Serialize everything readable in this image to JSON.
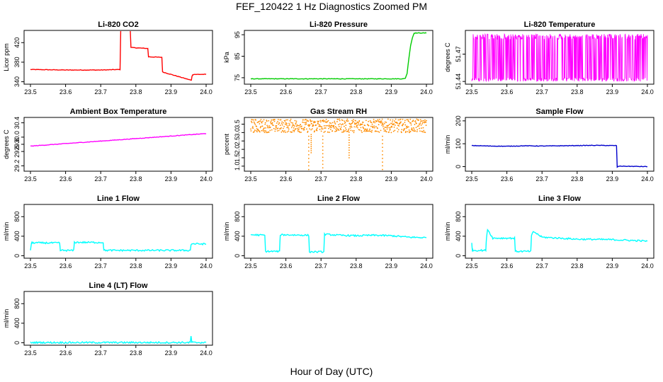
{
  "page": {
    "title": "FEF_120422  1 Hz Diagnostics Zoomed PM",
    "xlabel": "Hour of Day (UTC)"
  },
  "chart_data": [
    {
      "id": "co2",
      "type": "line",
      "title": "Li-820 CO2",
      "ylabel": "Licor ppm",
      "color": "#ff0000",
      "xlim": [
        23.5,
        24.0
      ],
      "ylim": [
        335,
        445
      ],
      "xticks": [
        "23.5",
        "23.6",
        "23.7",
        "23.8",
        "23.9",
        "24.0"
      ],
      "yticks": [
        "340",
        "380",
        "420"
      ],
      "series": [
        {
          "x": [
            23.5,
            23.6,
            23.7,
            23.755,
            23.757,
            23.784,
            23.786,
            23.834,
            23.836,
            23.874,
            23.876,
            23.958,
            23.96,
            23.962,
            23.964,
            24.0
          ],
          "y": [
            365,
            364,
            364,
            365,
            448,
            448,
            410,
            408,
            391,
            390,
            360,
            343,
            352,
            354,
            355,
            355
          ]
        }
      ]
    },
    {
      "id": "pressure",
      "type": "line",
      "title": "Li-820 Pressure",
      "ylabel": "kPa",
      "color": "#00cc00",
      "xlim": [
        23.5,
        24.0
      ],
      "ylim": [
        72,
        97
      ],
      "xticks": [
        "23.5",
        "23.6",
        "23.7",
        "23.8",
        "23.9",
        "24.0"
      ],
      "yticks": [
        "75",
        "85",
        "95"
      ],
      "series": [
        {
          "x": [
            23.5,
            23.7,
            23.9,
            23.935,
            23.94,
            23.945,
            23.95,
            23.955,
            23.96,
            23.965,
            24.0
          ],
          "y": [
            74.5,
            74.5,
            74.5,
            74.5,
            74.8,
            77,
            84,
            90,
            93.5,
            95.8,
            95.8
          ]
        }
      ]
    },
    {
      "id": "licor-temp",
      "type": "line",
      "title": "Li-820 Temperature",
      "ylabel": "degrees C",
      "color": "#ff00ff",
      "xlim": [
        23.5,
        24.0
      ],
      "ylim": [
        51.437,
        51.496
      ],
      "xticks": [
        "23.5",
        "23.6",
        "23.7",
        "23.8",
        "23.9",
        "24.0"
      ],
      "yticks": [
        "51.44",
        "51.47"
      ],
      "series": [
        {
          "noise": "band",
          "low": 51.44,
          "high": 51.492
        }
      ]
    },
    {
      "id": "box-temp",
      "type": "line",
      "title": "Ambient Box Temperature",
      "ylabel": "degrees C",
      "color": "#ff00ff",
      "xlim": [
        23.5,
        24.0
      ],
      "ylim": [
        29.05,
        30.55
      ],
      "xticks": [
        "23.5",
        "23.6",
        "23.7",
        "23.8",
        "23.9",
        "24.0"
      ],
      "yticks": [
        "29.2",
        "29.6",
        "29.8",
        "30.0",
        "30.4"
      ],
      "series": [
        {
          "noise": "ramp",
          "x": [
            23.5,
            24.0
          ],
          "y": [
            29.75,
            30.1
          ],
          "spread": 0.2
        }
      ]
    },
    {
      "id": "rh",
      "type": "scatter",
      "title": "Gas Stream RH",
      "ylabel": "percent",
      "color": "#ff8c00",
      "xlim": [
        23.5,
        24.0
      ],
      "ylim": [
        0.7,
        3.9
      ],
      "xticks": [
        "23.5",
        "23.6",
        "23.7",
        "23.8",
        "23.9",
        "24.0"
      ],
      "yticks": [
        "1.0",
        "1.5",
        "2.0",
        "2.5",
        "3.0",
        "3.5"
      ],
      "series": [
        {
          "noise": "dots",
          "low": 3.0,
          "high": 3.8,
          "dips": [
            [
              23.665,
              0.8
            ],
            [
              23.672,
              1.8
            ],
            [
              23.705,
              0.9
            ],
            [
              23.78,
              1.5
            ],
            [
              23.875,
              0.8
            ]
          ]
        }
      ]
    },
    {
      "id": "sample-flow",
      "type": "line",
      "title": "Sample Flow",
      "ylabel": "ml/min",
      "color": "#0000cc",
      "xlim": [
        23.5,
        24.0
      ],
      "ylim": [
        -20,
        215
      ],
      "xticks": [
        "23.5",
        "23.6",
        "23.7",
        "23.8",
        "23.9",
        "24.0"
      ],
      "yticks": [
        "0",
        "100",
        "200"
      ],
      "series": [
        {
          "x": [
            23.5,
            23.55,
            23.6,
            23.65,
            23.7,
            23.75,
            23.8,
            23.85,
            23.9,
            23.912,
            23.914,
            23.92,
            24.0
          ],
          "y": [
            92,
            90,
            89,
            91,
            90,
            91,
            92,
            93,
            92,
            92,
            -2,
            2,
            0
          ]
        }
      ]
    },
    {
      "id": "line1-flow",
      "type": "line",
      "title": "Line 1 Flow",
      "ylabel": "ml/min",
      "color": "#00ffff",
      "xlim": [
        23.5,
        24.0
      ],
      "ylim": [
        -50,
        1050
      ],
      "xticks": [
        "23.5",
        "23.6",
        "23.7",
        "23.8",
        "23.9",
        "24.0"
      ],
      "yticks": [
        "0",
        "400",
        "800"
      ],
      "series": [
        {
          "x": [
            23.5,
            23.503,
            23.505,
            23.583,
            23.585,
            23.623,
            23.625,
            23.707,
            23.709,
            23.955,
            23.957,
            23.96,
            24.0
          ],
          "y": [
            120,
            260,
            265,
            262,
            110,
            108,
            275,
            272,
            110,
            110,
            230,
            245,
            240
          ]
        }
      ]
    },
    {
      "id": "line2-flow",
      "type": "line",
      "title": "Line 2 Flow",
      "ylabel": "ml/min",
      "color": "#00ffff",
      "xlim": [
        23.5,
        24.0
      ],
      "ylim": [
        -50,
        1050
      ],
      "xticks": [
        "23.5",
        "23.6",
        "23.7",
        "23.8",
        "23.9",
        "24.0"
      ],
      "yticks": [
        "0",
        "400",
        "800"
      ],
      "series": [
        {
          "x": [
            23.5,
            23.54,
            23.542,
            23.582,
            23.584,
            23.665,
            23.667,
            23.708,
            23.71,
            23.75,
            23.8,
            23.85,
            23.9,
            23.95,
            24.0
          ],
          "y": [
            430,
            420,
            90,
            90,
            430,
            420,
            80,
            80,
            440,
            420,
            410,
            420,
            410,
            380,
            370
          ]
        }
      ]
    },
    {
      "id": "line3-flow",
      "type": "line",
      "title": "Line 3 Flow",
      "ylabel": "ml/min",
      "color": "#00ffff",
      "xlim": [
        23.5,
        24.0
      ],
      "ylim": [
        -50,
        1050
      ],
      "xticks": [
        "23.5",
        "23.6",
        "23.7",
        "23.8",
        "23.9",
        "24.0"
      ],
      "yticks": [
        "0",
        "400",
        "800"
      ],
      "series": [
        {
          "x": [
            23.5,
            23.502,
            23.504,
            23.54,
            23.542,
            23.545,
            23.56,
            23.622,
            23.624,
            23.668,
            23.67,
            23.675,
            23.7,
            23.8,
            23.9,
            24.0
          ],
          "y": [
            260,
            100,
            110,
            110,
            380,
            540,
            360,
            360,
            90,
            90,
            400,
            500,
            380,
            340,
            330,
            300
          ]
        }
      ]
    },
    {
      "id": "line4-flow",
      "type": "line",
      "title": "Line 4 (LT) Flow",
      "ylabel": "ml/min",
      "color": "#00ffff",
      "xlim": [
        23.5,
        24.0
      ],
      "ylim": [
        -50,
        1050
      ],
      "xticks": [
        "23.5",
        "23.6",
        "23.7",
        "23.8",
        "23.9",
        "24.0"
      ],
      "yticks": [
        "0",
        "400",
        "800"
      ],
      "series": [
        {
          "x": [
            23.5,
            23.955,
            23.957,
            23.959,
            23.961,
            24.0
          ],
          "y": [
            5,
            5,
            140,
            20,
            5,
            5
          ]
        }
      ]
    }
  ]
}
